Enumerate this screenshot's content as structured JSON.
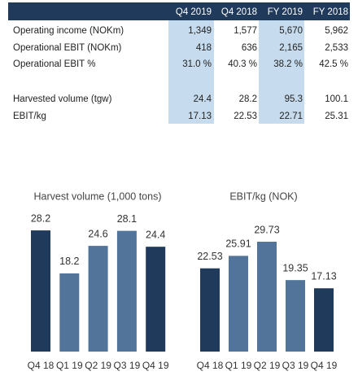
{
  "table": {
    "columns": [
      "Q4 2019",
      "Q4 2018",
      "FY 2019",
      "FY 2018"
    ],
    "rows": [
      {
        "label": "Operating income (NOKm)",
        "values": [
          "1,349",
          "1,577",
          "5,670",
          "5,962"
        ]
      },
      {
        "label": "Operational EBIT (NOKm)",
        "values": [
          "418",
          "636",
          "2,165",
          "2,533"
        ]
      },
      {
        "label": "Operational EBIT %",
        "values": [
          "31.0 %",
          "40.3 %",
          "38.2 %",
          "42.5 %"
        ]
      },
      {
        "label": "Harvested volume (tgw)",
        "values": [
          "24.4",
          "28.2",
          "95.3",
          "100.1"
        ]
      },
      {
        "label": "EBIT/kg",
        "values": [
          "17.13",
          "22.53",
          "22.71",
          "25.31"
        ]
      }
    ]
  },
  "chart_data": [
    {
      "type": "bar",
      "title": "Harvest volume (1,000 tons)",
      "categories": [
        "Q4 18",
        "Q1 19",
        "Q2 19",
        "Q3 19",
        "Q4 19"
      ],
      "values": [
        28.2,
        18.2,
        24.6,
        28.1,
        24.4
      ],
      "colors": [
        "#1f3a5a",
        "#52739a",
        "#52739a",
        "#52739a",
        "#1f3a5a"
      ]
    },
    {
      "type": "bar",
      "title": "EBIT/kg (NOK)",
      "categories": [
        "Q4 18",
        "Q1 19",
        "Q2 19",
        "Q3 19",
        "Q4 19"
      ],
      "values": [
        22.53,
        25.91,
        29.73,
        19.35,
        17.13
      ],
      "colors": [
        "#1f3a5a",
        "#52739a",
        "#52739a",
        "#52739a",
        "#1f3a5a"
      ]
    }
  ]
}
